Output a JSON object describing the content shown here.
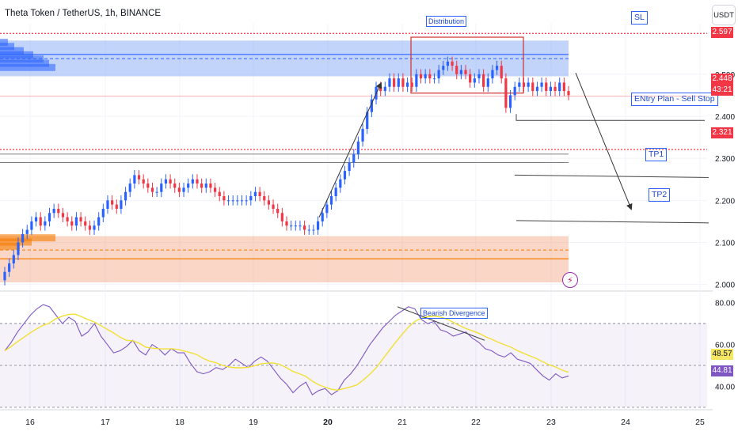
{
  "header": {
    "title": "Theta Token / TetherUS, 1h, BINANCE",
    "currency_button": "USDT"
  },
  "colors": {
    "up": "#26a69a",
    "down": "#ef5350",
    "up_candle": "#2962ff",
    "down_candle": "#f23645",
    "supply_zone": "#8fb0f5",
    "demand_zone": "#f4a582",
    "rsi_line": "#7e57c2",
    "rsi_ma": "#f2e034",
    "annotation": "#2962ff",
    "current_price_tag": "#f23645",
    "rsi_tag": "#7e57c2",
    "rsi_ma_tag": "#f5e663"
  },
  "annotations": {
    "distribution": "Distribution",
    "sl": "SL",
    "entry": "ENtry Plan - Sell Stop",
    "tp1": "TP1",
    "tp2": "TP2",
    "bearish_divergence": "Bearish Divergence"
  },
  "price_tags": {
    "top": "2.597",
    "current": "2.448",
    "countdown": "43:21",
    "level": "2.321",
    "rsi_ma": "48.57",
    "rsi": "44.81"
  },
  "chart_data": {
    "type": "candlestick",
    "price_axis": {
      "ticks": [
        "2.500",
        "2.400",
        "2.300",
        "2.200",
        "2.100",
        "2.000"
      ],
      "range": [
        1.99,
        2.62
      ]
    },
    "rsi_axis": {
      "ticks": [
        "80.00",
        "60.00",
        "40.00"
      ],
      "range": [
        30,
        84
      ],
      "bands": [
        70,
        50,
        30
      ]
    },
    "time_axis": {
      "ticks": [
        "16",
        "17",
        "18",
        "19",
        "20",
        "21",
        "22",
        "23",
        "24",
        "25"
      ]
    },
    "levels": {
      "sl": 2.597,
      "entry": 2.39,
      "tp1": 2.26,
      "tp2": 2.152,
      "current": 2.448,
      "red_dotted": 2.321,
      "gray_line_1": 2.31,
      "gray_line_2": 2.29
    },
    "zones": {
      "supply": [
        2.495,
        2.58
      ],
      "demand": [
        2.005,
        2.115
      ]
    },
    "closes": [
      2.03,
      2.05,
      2.07,
      2.1,
      2.12,
      2.13,
      2.15,
      2.16,
      2.14,
      2.15,
      2.17,
      2.18,
      2.17,
      2.16,
      2.15,
      2.14,
      2.16,
      2.15,
      2.14,
      2.13,
      2.14,
      2.16,
      2.18,
      2.2,
      2.19,
      2.18,
      2.2,
      2.22,
      2.24,
      2.26,
      2.25,
      2.24,
      2.23,
      2.22,
      2.22,
      2.24,
      2.25,
      2.24,
      2.23,
      2.22,
      2.23,
      2.24,
      2.25,
      2.24,
      2.23,
      2.24,
      2.23,
      2.22,
      2.21,
      2.2,
      2.2,
      2.2,
      2.2,
      2.2,
      2.2,
      2.21,
      2.22,
      2.21,
      2.2,
      2.19,
      2.18,
      2.17,
      2.15,
      2.14,
      2.14,
      2.14,
      2.14,
      2.13,
      2.13,
      2.13,
      2.15,
      2.17,
      2.19,
      2.21,
      2.23,
      2.25,
      2.27,
      2.29,
      2.31,
      2.34,
      2.37,
      2.41,
      2.44,
      2.47,
      2.46,
      2.47,
      2.49,
      2.47,
      2.49,
      2.47,
      2.48,
      2.47,
      2.5,
      2.49,
      2.5,
      2.49,
      2.49,
      2.51,
      2.52,
      2.53,
      2.52,
      2.5,
      2.51,
      2.5,
      2.48,
      2.49,
      2.5,
      2.47,
      2.49,
      2.51,
      2.52,
      2.49,
      2.42,
      2.45,
      2.47,
      2.48,
      2.47,
      2.48,
      2.46,
      2.47,
      2.48,
      2.46,
      2.47,
      2.46,
      2.48,
      2.46,
      2.45
    ],
    "rsi": [
      57,
      61,
      66,
      70,
      74,
      77,
      79,
      78,
      74,
      70,
      73,
      71,
      64,
      66,
      70,
      64,
      60,
      56,
      57,
      59,
      62,
      57,
      55,
      60,
      58,
      55,
      58,
      56,
      56,
      51,
      47,
      46,
      47,
      49,
      48,
      50,
      53,
      51,
      49,
      52,
      54,
      52,
      48,
      44,
      41,
      37,
      40,
      42,
      36,
      38,
      39,
      36,
      38,
      43,
      46,
      50,
      55,
      60,
      64,
      68,
      71,
      74,
      76,
      78,
      77,
      72,
      70,
      71,
      67,
      66,
      64,
      65,
      66,
      63,
      61,
      58,
      57,
      55,
      54,
      56,
      53,
      52,
      51,
      48,
      45,
      43,
      46,
      44,
      45
    ]
  }
}
